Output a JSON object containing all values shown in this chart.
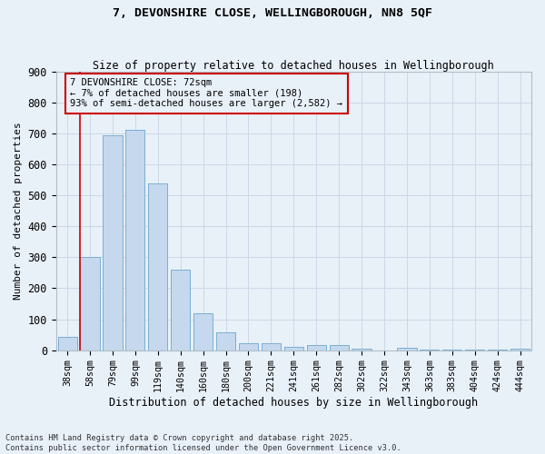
{
  "title_line1": "7, DEVONSHIRE CLOSE, WELLINGBOROUGH, NN8 5QF",
  "title_line2": "Size of property relative to detached houses in Wellingborough",
  "xlabel": "Distribution of detached houses by size in Wellingborough",
  "ylabel": "Number of detached properties",
  "categories": [
    "38sqm",
    "58sqm",
    "79sqm",
    "99sqm",
    "119sqm",
    "140sqm",
    "160sqm",
    "180sqm",
    "200sqm",
    "221sqm",
    "241sqm",
    "261sqm",
    "282sqm",
    "302sqm",
    "322sqm",
    "343sqm",
    "363sqm",
    "383sqm",
    "404sqm",
    "424sqm",
    "444sqm"
  ],
  "values": [
    42,
    300,
    693,
    710,
    537,
    260,
    120,
    58,
    22,
    22,
    12,
    17,
    17,
    5,
    0,
    8,
    2,
    2,
    1,
    1,
    5
  ],
  "bar_color": "#c5d8ed",
  "bar_edge_color": "#7aafd4",
  "marker_line_color": "#cc0000",
  "annotation_box_edge_color": "#cc0000",
  "marker_label_line1": "7 DEVONSHIRE CLOSE: 72sqm",
  "marker_label_line2": "← 7% of detached houses are smaller (198)",
  "marker_label_line3": "93% of semi-detached houses are larger (2,582) →",
  "grid_color": "#cdd8e8",
  "background_color": "#e8f0f8",
  "plot_bg_color": "#e8f0f8",
  "ylim": [
    0,
    900
  ],
  "yticks": [
    0,
    100,
    200,
    300,
    400,
    500,
    600,
    700,
    800,
    900
  ],
  "footnote": "Contains HM Land Registry data © Crown copyright and database right 2025.\nContains public sector information licensed under the Open Government Licence v3.0."
}
